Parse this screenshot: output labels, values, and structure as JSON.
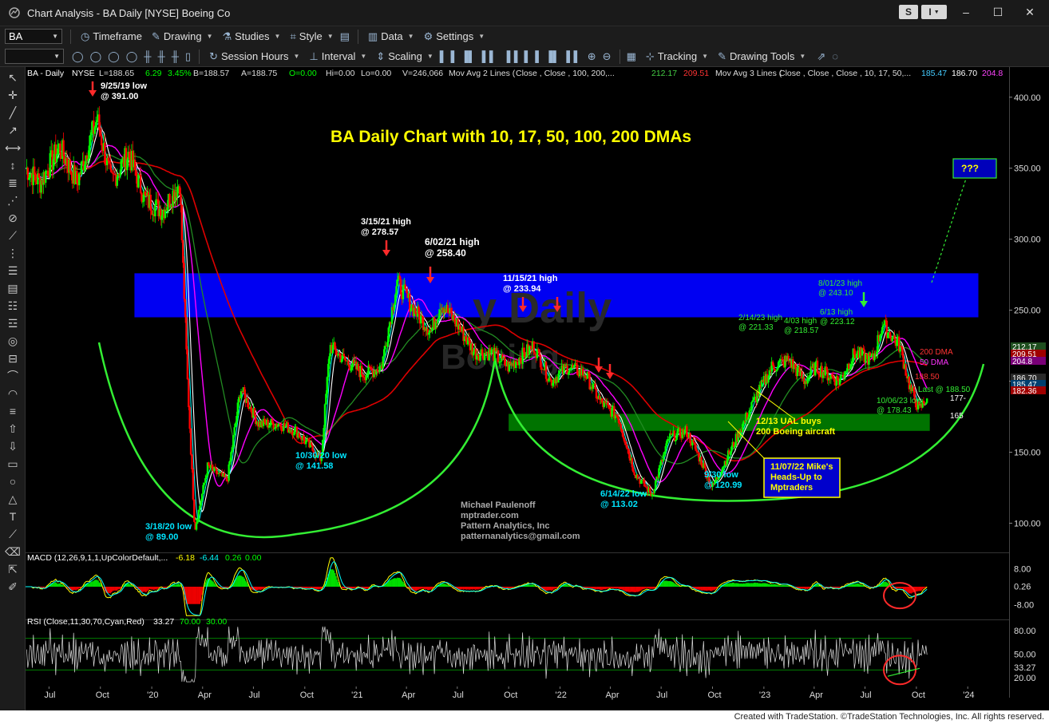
{
  "window": {
    "title": "Chart Analysis - BA Daily [NYSE] Boeing Co",
    "s_button": "S",
    "i_button": "I",
    "minimize": "–",
    "maximize": "☐",
    "close": "✕"
  },
  "toolbar1": {
    "symbol": "BA",
    "timeframe": "Timeframe",
    "drawing": "Drawing",
    "studies": "Studies",
    "style": "Style",
    "data": "Data",
    "settings": "Settings"
  },
  "toolbar2": {
    "session_hours": "Session Hours",
    "interval": "Interval",
    "scaling": "Scaling",
    "tracking": "Tracking",
    "drawing_tools": "Drawing Tools"
  },
  "footer": {
    "credit": "Created with TradeStation. ©TradeStation Technologies, Inc. All rights reserved."
  },
  "colors": {
    "blue_zone": "#0000ff",
    "green_zone": "#008000",
    "title_yellow": "#ffff00",
    "up_candle": "#00ff00",
    "down_candle": "#ff0000",
    "arc_green": "#33ee33",
    "ma10": "#00ffff",
    "ma17": "#ffffff",
    "ma50": "#ff00ff",
    "ma100": "#228b22",
    "ma200": "#dd0000"
  },
  "chart_data": {
    "type": "line",
    "symbol_header": {
      "symbol": "BA - Daily",
      "exchange": "NYSE",
      "last": "L=188.65",
      "change": "6.29",
      "change_pct": "3.45%",
      "bid": "B=188.57",
      "ask": "A=188.75",
      "open": "O=0.00",
      "high": "Hi=0.00",
      "low": "Lo=0.00",
      "volume": "V=246,066",
      "mov_avg_2": "Mov Avg 2 Lines (",
      "mov_avg_2_args": "Close ,      Close ,  100,  200,...",
      "mov_avg_2_v1": "212.17",
      "mov_avg_2_v2": "209.51",
      "mov_avg_3": "Mov Avg 3 Lines (",
      "mov_avg_3_args": "Close ,  Close ,  Close , 10, 17, 50,...",
      "mov_avg_3_v1": "185.47",
      "mov_avg_3_v2": "186.70",
      "mov_avg_3_v3": "204.8"
    },
    "title": "BA Daily Chart with 10, 17, 50, 100, 200 DMAs",
    "y_axis": {
      "min": 80,
      "max": 410,
      "ticks": [
        "400.00",
        "350.00",
        "300.00",
        "250.00",
        "200.00",
        "150.00",
        "100.00"
      ],
      "tick_values": [
        400,
        350,
        300,
        250,
        200,
        150,
        100
      ]
    },
    "x_axis": {
      "ticks": [
        "Jul",
        "Oct",
        "'20",
        "Apr",
        "Jul",
        "Oct",
        "'21",
        "Apr",
        "Jul",
        "Oct",
        "'22",
        "Apr",
        "Jul",
        "Oct",
        "'23",
        "Apr",
        "Jul",
        "Oct",
        "'24"
      ],
      "tick_dates": [
        "2019-07-01",
        "2019-10-01",
        "2020-01-01",
        "2020-04-01",
        "2020-07-01",
        "2020-10-01",
        "2021-01-01",
        "2021-04-01",
        "2021-07-01",
        "2021-10-01",
        "2022-01-01",
        "2022-04-01",
        "2022-07-01",
        "2022-10-01",
        "2023-01-01",
        "2023-04-01",
        "2023-07-01",
        "2023-10-01",
        "2024-01-01"
      ],
      "start": "2019-05-20",
      "end": "2024-03-15"
    },
    "price_series": {
      "name": "BA",
      "dates": [
        "2019-05-20",
        "2019-06-15",
        "2019-07-20",
        "2019-08-20",
        "2019-09-25",
        "2019-10-20",
        "2019-11-20",
        "2019-12-20",
        "2020-01-20",
        "2020-02-20",
        "2020-03-05",
        "2020-03-18",
        "2020-04-10",
        "2020-05-15",
        "2020-06-08",
        "2020-07-10",
        "2020-08-15",
        "2020-09-15",
        "2020-10-30",
        "2020-11-15",
        "2020-12-10",
        "2021-01-15",
        "2021-02-15",
        "2021-03-15",
        "2021-04-15",
        "2021-05-15",
        "2021-06-02",
        "2021-07-01",
        "2021-08-01",
        "2021-09-01",
        "2021-10-01",
        "2021-11-15",
        "2021-12-15",
        "2022-01-15",
        "2022-02-15",
        "2022-03-15",
        "2022-04-15",
        "2022-05-15",
        "2022-06-14",
        "2022-07-15",
        "2022-08-15",
        "2022-09-15",
        "2022-09-30",
        "2022-11-07",
        "2022-12-13",
        "2023-01-15",
        "2023-02-14",
        "2023-03-15",
        "2023-04-03",
        "2023-05-15",
        "2023-06-13",
        "2023-07-15",
        "2023-08-01",
        "2023-09-01",
        "2023-09-20",
        "2023-10-06",
        "2023-10-20"
      ],
      "close": [
        350,
        340,
        365,
        340,
        385,
        340,
        360,
        328,
        320,
        340,
        200,
        95,
        140,
        130,
        195,
        170,
        170,
        165,
        145,
        225,
        215,
        205,
        210,
        270,
        250,
        235,
        255,
        240,
        220,
        220,
        210,
        225,
        200,
        210,
        205,
        185,
        175,
        135,
        120,
        160,
        165,
        140,
        125,
        155,
        185,
        210,
        215,
        200,
        210,
        200,
        220,
        215,
        240,
        225,
        195,
        180,
        188.5
      ]
    },
    "moving_averages": [
      {
        "name": "200 DMA",
        "label": "200 DMA",
        "value": "209.51"
      },
      {
        "name": "50 DMA",
        "label": "50 DMA"
      },
      {
        "name": "10 DMA"
      },
      {
        "name": "17 DMA"
      },
      {
        "name": "100 DMA"
      }
    ],
    "zones": [
      {
        "name": "blue-resistance-zone",
        "from": 245,
        "to": 276,
        "start": "2019-12-01",
        "end": "2024-01-20"
      },
      {
        "name": "green-support-zone",
        "from": 165,
        "to": 177,
        "start": "2021-10-01",
        "end": "2023-10-25"
      }
    ],
    "annotations": {
      "high_2019_line1": "9/25/19 low",
      "high_2019_line2": "@ 391.00",
      "low_2020_line1": "3/18/20 low",
      "low_2020_line2": "@ 89.00",
      "low_oct2020_line1": "10/30/20 low",
      "low_oct2020_line2": "@ 141.58",
      "high_mar21_line1": "3/15/21 high",
      "high_mar21_line2": "@ 278.57",
      "high_jun21_line1": "6/02/21 high",
      "high_jun21_line2": "@ 258.40",
      "high_nov21_line1": "11/15/21 high",
      "high_nov21_line2": "@ 233.94",
      "low_jun22_line1": "6/14/22 low",
      "low_jun22_line2": "@ 113.02",
      "low_sep22_line1": "9/30  low",
      "low_sep22_line2": "@ 120.99",
      "high_feb23_line1": "2/14/23 high",
      "high_feb23_line2": "@ 221.33",
      "high_apr23_line1": "4/03 high",
      "high_apr23_line2": "@ 218.57",
      "high_jun23_line1": "6/13 high",
      "high_jun23_line2": "@ 223.12",
      "high_aug23_line1": "8/01/23 high",
      "high_aug23_line2": "@ 243.10",
      "low_oct23_line1": "10/06/23 low",
      "low_oct23_line2": "@ 178.43",
      "ual_line1": "12/13 UAL buys",
      "ual_line2": "200 Boeing aircraft",
      "mike_line1": "11/07/22 Mike's",
      "mike_line2": "Heads-Up to",
      "mike_line3": "Mptraders",
      "question": "???",
      "dma200_label": "200 DMA",
      "dma50_label": "50 DMA",
      "val_188": "188.50",
      "last_label": "Last @ 188.50",
      "val_177": "177-",
      "val_165": "165",
      "author1": "Michael Paulenoff",
      "author2": "mptrader.com",
      "author3": "Pattern Analytics, Inc",
      "author4": "patternanalytics@gmail.com",
      "watermark1": "y Daily",
      "watermark2": "Boeing"
    },
    "price_badges": [
      "212.17",
      "209.51",
      "204.8",
      "186.70",
      "185.47",
      "182.36"
    ],
    "macd": {
      "label": "MACD (12,26,9,1,1,UpColorDefault,...",
      "v1": "-6.18",
      "v2": "-6.44",
      "v3": "0.26",
      "v4": "0.00",
      "ticks": [
        "8.00",
        "0.26",
        "-8.00"
      ],
      "tick_values": [
        8,
        0.26,
        -8
      ],
      "range": [
        -14,
        14
      ]
    },
    "rsi": {
      "label": "RSI (Close,11,30,70,Cyan,Red)",
      "v1": "33.27",
      "v2": "70.00",
      "v3": "30.00",
      "ticks": [
        "80.00",
        "50.00",
        "33.27",
        "20.00"
      ],
      "tick_values": [
        80,
        50,
        33.27,
        20
      ],
      "range": [
        10,
        90
      ]
    }
  }
}
